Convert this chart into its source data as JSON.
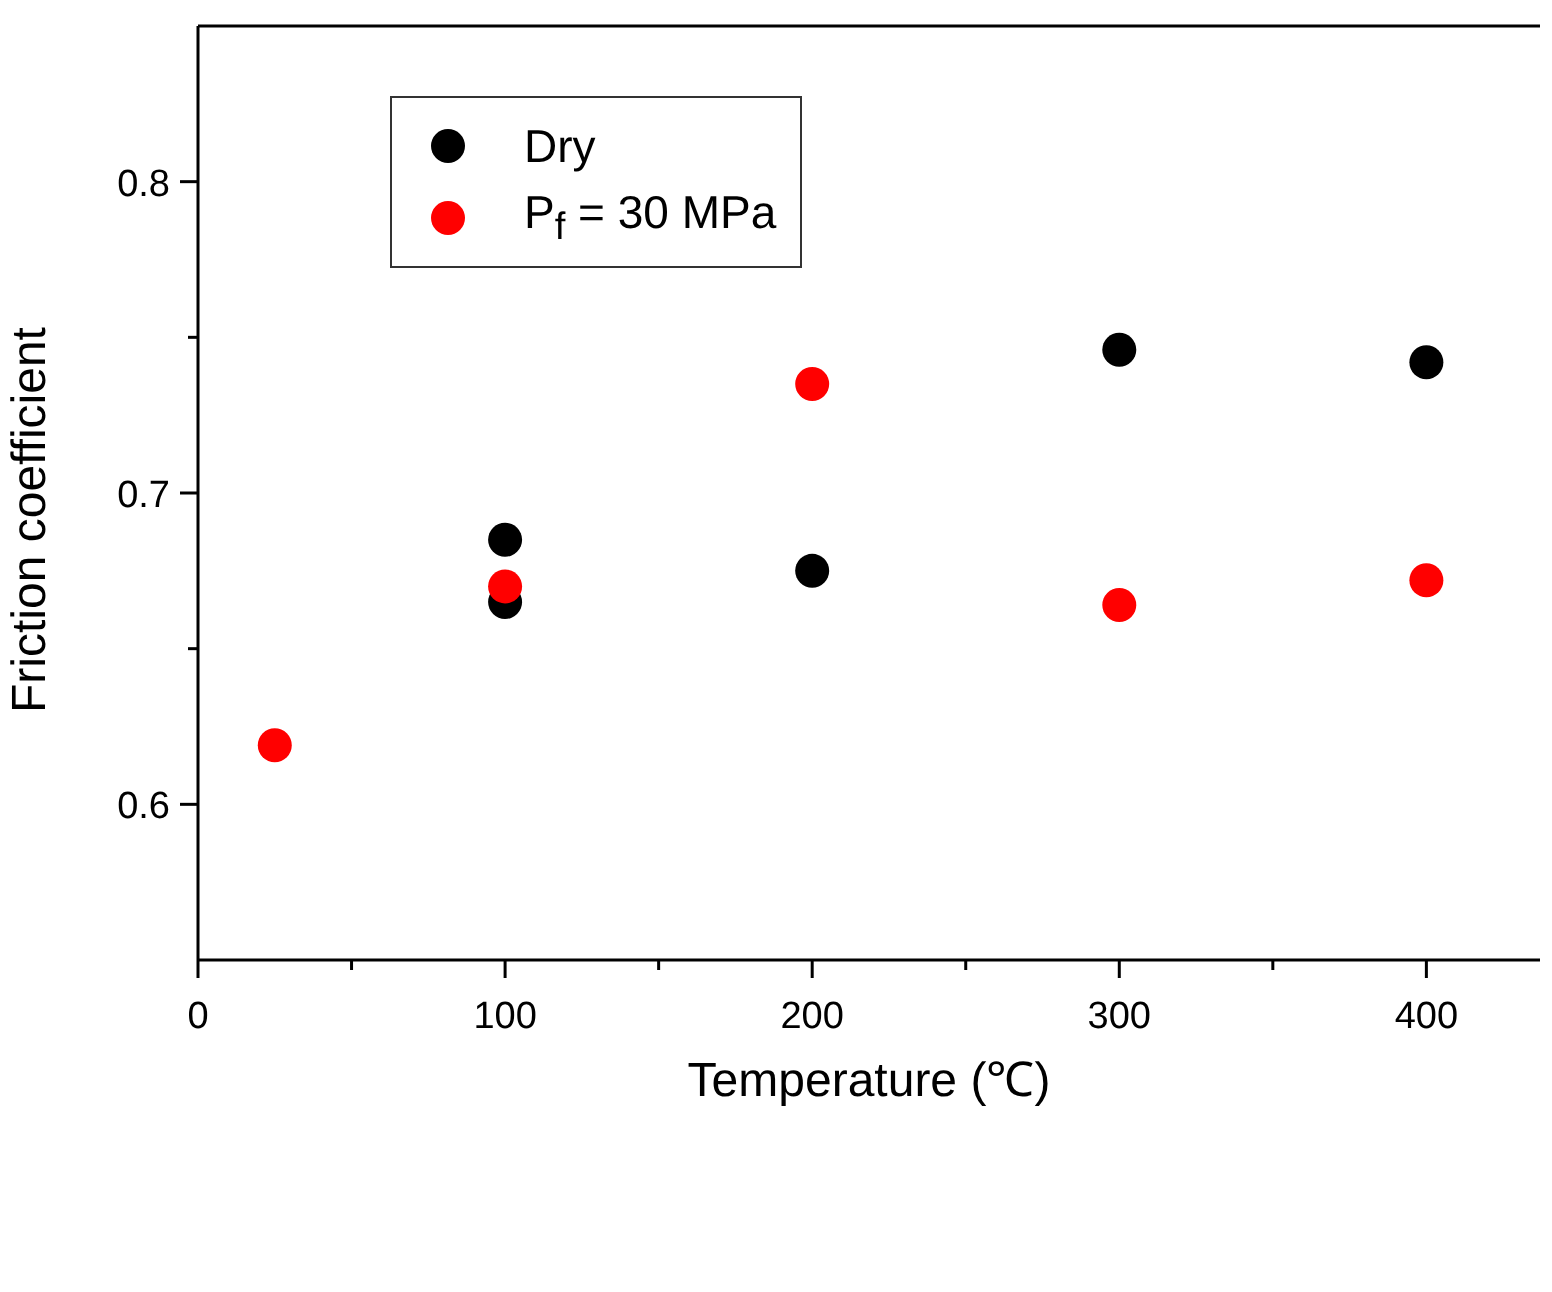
{
  "chart_data": {
    "type": "scatter",
    "xlabel": "Temperature (℃)",
    "ylabel": "Friction coefficient",
    "xlim": [
      0,
      437
    ],
    "ylim": [
      0.55,
      0.85
    ],
    "xticks": [
      0,
      {
        "value": 50,
        "label": null
      },
      100,
      {
        "value": 150,
        "label": null
      },
      200,
      {
        "value": 250,
        "label": null
      },
      300,
      {
        "value": 350,
        "label": null
      },
      400
    ],
    "yticks": [
      0.6,
      {
        "value": 0.65,
        "label": null
      },
      0.7,
      {
        "value": 0.75,
        "label": null
      },
      0.8
    ],
    "marker": "circle",
    "legend": "top left",
    "series": [
      {
        "name": "Dry",
        "color": "#000000",
        "x": [
          100,
          100,
          200,
          300,
          400
        ],
        "values": [
          0.685,
          0.665,
          0.675,
          0.746,
          0.742
        ]
      },
      {
        "name": "P$_{f}$ = 30 MPa",
        "color": "#ff0000",
        "x": [
          25,
          100,
          200,
          300,
          400
        ],
        "values": [
          0.619,
          0.67,
          0.735,
          0.664,
          0.672
        ]
      }
    ]
  }
}
